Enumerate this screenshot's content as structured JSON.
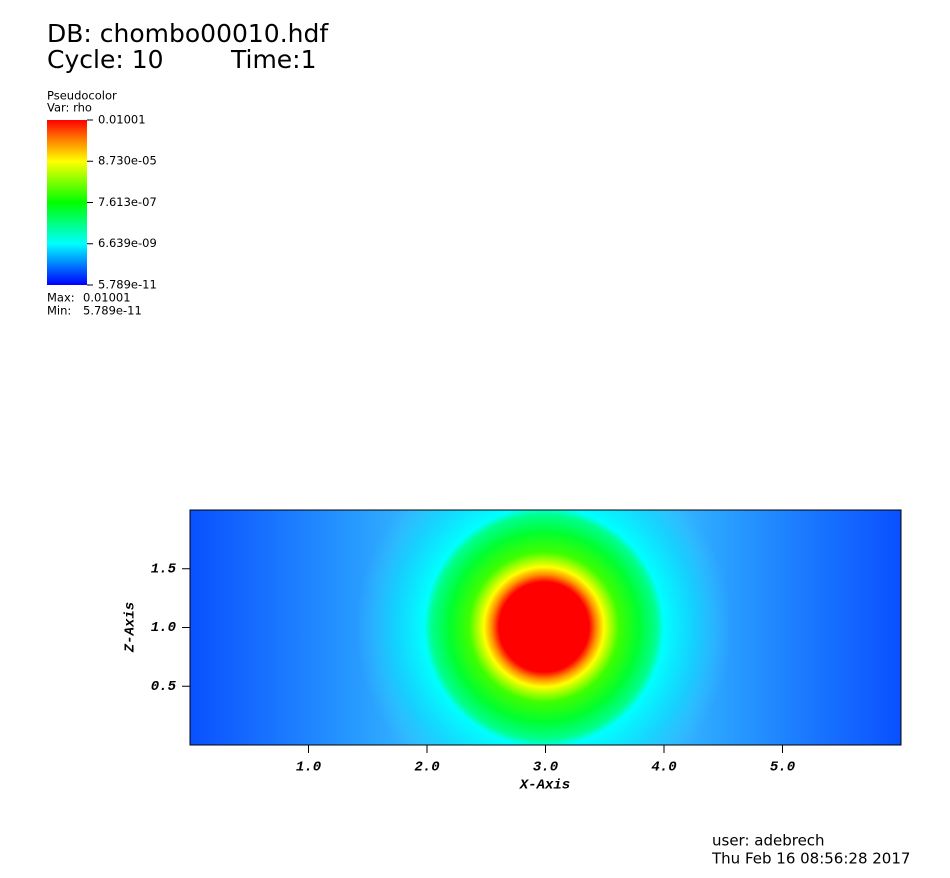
{
  "header": {
    "db": "DB: chombo00010.hdf",
    "cycle": "Cycle: 10",
    "time": "Time:1"
  },
  "chart_data": {
    "type": "pseudocolor",
    "legend_title": "Pseudocolor",
    "variable": "Var: rho",
    "colorbar_lim": [
      {
        "value": 5.789e-11,
        "label": "5.789e-11"
      },
      0.01001
    ],
    "colorbar_log_scale": true,
    "colorbar_ticks": [
      0.01001,
      {
        "value": 8.73e-05,
        "label": "8.730e-05"
      },
      {
        "value": 7.613e-07,
        "label": "7.613e-07"
      },
      {
        "value": 6.639e-09,
        "label": "6.639e-09"
      },
      {
        "value": 5.789e-11,
        "label": "5.789e-11"
      }
    ],
    "max_label": "Max:",
    "max": 0.01001,
    "min_label": "Min:",
    "min": {
      "value": 5.789e-11,
      "label": "5.789e-11"
    },
    "x_label": "X-Axis",
    "y_label": "Z-Axis",
    "xlim": [
      0,
      6
    ],
    "ylim": [
      0,
      2
    ],
    "xticks": [
      {
        "value": 1,
        "label": "1.0"
      },
      {
        "value": 2,
        "label": "2.0"
      },
      {
        "value": 3,
        "label": "3.0"
      },
      {
        "value": 4,
        "label": "4.0"
      },
      {
        "value": 5,
        "label": "5.0"
      }
    ],
    "yticks": [
      {
        "value": 0.5,
        "label": "0.5"
      },
      {
        "value": 1,
        "label": "1.0"
      },
      {
        "value": 1.5,
        "label": "1.5"
      }
    ]
  },
  "footer": {
    "user": "user: adebrech",
    "date": "Thu Feb 16 08:56:28 2017"
  }
}
